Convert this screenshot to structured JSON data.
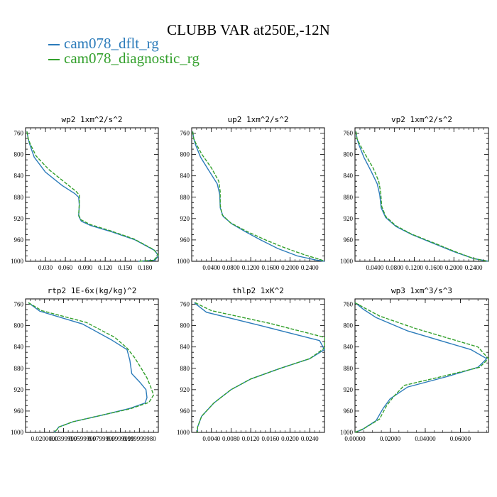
{
  "title": "CLUBB VAR at250E,-12N",
  "legend": [
    {
      "label": "cam078_dflt_rg",
      "color": "#2b7bba"
    },
    {
      "label": "cam078_diagnostic_rg",
      "color": "#33a02c"
    }
  ],
  "chart_data": [
    {
      "type": "line",
      "title": "wp2   1xm^2/s^2",
      "xlim": [
        0,
        0.2
      ],
      "ylim": [
        1000,
        750
      ],
      "xticks": [
        0.03,
        0.06,
        0.09,
        0.12,
        0.15,
        0.18
      ],
      "xtick_labels": [
        "0.030",
        "0.060",
        "0.090",
        "0.120",
        "0.150",
        "0.180"
      ],
      "yticks": [
        760,
        800,
        840,
        880,
        920,
        960,
        1000
      ],
      "series": [
        {
          "name": "cam078_dflt_rg",
          "color": "#2b7bba",
          "x": [
            0.002,
            0.004,
            0.006,
            0.013,
            0.03,
            0.055,
            0.074,
            0.08,
            0.081,
            0.08,
            0.084,
            0.098,
            0.13,
            0.165,
            0.195,
            0.2,
            0.195,
            0.17
          ],
          "y": [
            757,
            770,
            780,
            805,
            833,
            858,
            873,
            880,
            895,
            915,
            925,
            933,
            945,
            960,
            980,
            990,
            998,
            1000
          ]
        },
        {
          "name": "cam078_diagnostic_rg",
          "color": "#33a02c",
          "x": [
            0.002,
            0.004,
            0.007,
            0.016,
            0.035,
            0.06,
            0.076,
            0.081,
            0.081,
            0.08,
            0.083,
            0.097,
            0.128,
            0.163,
            0.193,
            0.2,
            0.193,
            0.17
          ],
          "y": [
            757,
            770,
            780,
            803,
            828,
            853,
            869,
            876,
            893,
            913,
            922,
            931,
            943,
            958,
            978,
            989,
            998,
            1000
          ]
        }
      ]
    },
    {
      "type": "line",
      "title": "up2   1xm^2/s^2",
      "xlim": [
        0,
        0.27
      ],
      "ylim": [
        1000,
        750
      ],
      "xticks": [
        0.04,
        0.08,
        0.12,
        0.16,
        0.2,
        0.24
      ],
      "xtick_labels": [
        "0.0400",
        "0.0800",
        "0.1200",
        "0.1600",
        "0.2000",
        "0.2400"
      ],
      "yticks": [
        760,
        800,
        840,
        880,
        920,
        960,
        1000
      ],
      "series": [
        {
          "name": "cam078_dflt_rg",
          "color": "#2b7bba",
          "x": [
            0.002,
            0.004,
            0.008,
            0.018,
            0.035,
            0.052,
            0.057,
            0.058,
            0.064,
            0.082,
            0.11,
            0.14,
            0.175,
            0.215,
            0.255,
            0.27
          ],
          "y": [
            757,
            770,
            782,
            805,
            830,
            855,
            875,
            900,
            916,
            930,
            945,
            960,
            976,
            990,
            998,
            1000
          ]
        },
        {
          "name": "cam078_diagnostic_rg",
          "color": "#33a02c",
          "x": [
            0.002,
            0.004,
            0.009,
            0.021,
            0.04,
            0.055,
            0.058,
            0.058,
            0.062,
            0.079,
            0.112,
            0.15,
            0.19,
            0.23,
            0.262,
            0.27
          ],
          "y": [
            757,
            770,
            780,
            800,
            825,
            850,
            870,
            895,
            913,
            928,
            944,
            960,
            975,
            988,
            997,
            1000
          ]
        }
      ]
    },
    {
      "type": "line",
      "title": "vp2   1xm^2/s^2",
      "xlim": [
        0,
        0.27
      ],
      "ylim": [
        1000,
        750
      ],
      "xticks": [
        0.04,
        0.08,
        0.12,
        0.16,
        0.2,
        0.24
      ],
      "xtick_labels": [
        "0.0400",
        "0.0800",
        "0.1200",
        "0.1600",
        "0.2000",
        "0.2400"
      ],
      "yticks": [
        760,
        800,
        840,
        880,
        920,
        960,
        1000
      ],
      "series": [
        {
          "name": "cam078_dflt_rg",
          "color": "#2b7bba",
          "x": [
            0.002,
            0.004,
            0.008,
            0.018,
            0.033,
            0.045,
            0.05,
            0.053,
            0.062,
            0.083,
            0.115,
            0.155,
            0.2,
            0.24,
            0.27
          ],
          "y": [
            757,
            770,
            782,
            805,
            832,
            855,
            875,
            900,
            918,
            935,
            950,
            965,
            982,
            995,
            1000
          ]
        },
        {
          "name": "cam078_diagnostic_rg",
          "color": "#33a02c",
          "x": [
            0.002,
            0.004,
            0.009,
            0.021,
            0.037,
            0.048,
            0.052,
            0.054,
            0.062,
            0.082,
            0.114,
            0.155,
            0.2,
            0.24,
            0.27
          ],
          "y": [
            757,
            770,
            780,
            800,
            826,
            850,
            871,
            897,
            916,
            933,
            949,
            964,
            981,
            995,
            1000
          ]
        }
      ]
    },
    {
      "type": "line",
      "title": "rtp2   1E-6x(kg/kg)^2",
      "xlim": [
        0,
        0.14
      ],
      "ylim": [
        1000,
        750
      ],
      "xticks": [
        0.02,
        0.04,
        0.06,
        0.08,
        0.1,
        0.12
      ],
      "xtick_labels": [
        "0.0200000",
        "0.0399999",
        "0.0599999",
        "0.0799999",
        "0.0999999",
        "0.1199998"
      ],
      "xtick_labels_visible": [
        "0.0200000",
        "0.0399999",
        "0.0599999",
        "0.0799999",
        "0.0999999",
        "0.119999980"
      ],
      "yticks": [
        760,
        800,
        840,
        880,
        920,
        960,
        1000
      ],
      "series": [
        {
          "name": "cam078_dflt_rg",
          "color": "#2b7bba",
          "x": [
            0.003,
            0.015,
            0.06,
            0.09,
            0.107,
            0.11,
            0.112,
            0.12,
            0.127,
            0.128,
            0.126,
            0.11,
            0.08,
            0.05,
            0.035,
            0.033,
            0.03
          ],
          "y": [
            757,
            773,
            797,
            826,
            845,
            865,
            890,
            905,
            920,
            935,
            945,
            955,
            968,
            980,
            990,
            995,
            1000
          ]
        },
        {
          "name": "cam078_diagnostic_rg",
          "color": "#33a02c",
          "x": [
            0.003,
            0.017,
            0.064,
            0.094,
            0.107,
            0.115,
            0.122,
            0.128,
            0.132,
            0.135,
            0.13,
            0.11,
            0.08,
            0.05,
            0.035,
            0.033,
            0.03
          ],
          "y": [
            757,
            772,
            794,
            822,
            842,
            860,
            880,
            898,
            915,
            930,
            944,
            956,
            968,
            980,
            990,
            995,
            1000
          ]
        }
      ]
    },
    {
      "type": "line",
      "title": "thlp2   1xK^2",
      "xlim": [
        0,
        0.027
      ],
      "ylim": [
        1000,
        750
      ],
      "xticks": [
        0.004,
        0.008,
        0.012,
        0.016,
        0.02,
        0.024
      ],
      "xtick_labels": [
        "0.0040",
        "0.0080",
        "0.0120",
        "0.0160",
        "0.0200",
        "0.0240"
      ],
      "yticks": [
        760,
        800,
        840,
        880,
        920,
        960,
        1000
      ],
      "series": [
        {
          "name": "cam078_dflt_rg",
          "color": "#2b7bba",
          "x": [
            0.0005,
            0.003,
            0.014,
            0.026,
            0.027,
            0.024,
            0.018,
            0.012,
            0.008,
            0.0045,
            0.002,
            0.0012,
            0.0012
          ],
          "y": [
            757,
            775,
            800,
            828,
            845,
            862,
            880,
            900,
            920,
            945,
            970,
            990,
            1000
          ]
        },
        {
          "name": "cam078_diagnostic_rg",
          "color": "#33a02c",
          "x": [
            0.0007,
            0.004,
            0.016,
            0.027,
            0.027,
            0.024,
            0.018,
            0.012,
            0.008,
            0.0045,
            0.002,
            0.0012,
            0.0012
          ],
          "y": [
            757,
            772,
            796,
            822,
            842,
            862,
            880,
            900,
            920,
            945,
            970,
            990,
            1000
          ]
        }
      ]
    },
    {
      "type": "line",
      "title": "wp3   1xm^3/s^3",
      "xlim": [
        0,
        0.076
      ],
      "ylim": [
        1000,
        750
      ],
      "xticks": [
        0,
        0.02,
        0.04,
        0.06
      ],
      "xtick_labels": [
        "0.00000",
        "0.02000",
        "0.04000",
        "0.06000"
      ],
      "yticks": [
        760,
        800,
        840,
        880,
        920,
        960,
        1000
      ],
      "series": [
        {
          "name": "cam078_dflt_rg",
          "color": "#2b7bba",
          "x": [
            0.0,
            0.005,
            0.012,
            0.03,
            0.066,
            0.075,
            0.07,
            0.053,
            0.03,
            0.02,
            0.016,
            0.012,
            0.004,
            0.0
          ],
          "y": [
            757,
            770,
            785,
            810,
            845,
            862,
            878,
            895,
            915,
            937,
            955,
            978,
            995,
            1000
          ]
        },
        {
          "name": "cam078_diagnostic_rg",
          "color": "#33a02c",
          "x": [
            0.0,
            0.006,
            0.014,
            0.035,
            0.07,
            0.076,
            0.071,
            0.05,
            0.028,
            0.022,
            0.018,
            0.014,
            0.005,
            0.0
          ],
          "y": [
            757,
            768,
            782,
            806,
            840,
            862,
            878,
            895,
            912,
            933,
            950,
            975,
            993,
            1000
          ]
        }
      ]
    }
  ]
}
